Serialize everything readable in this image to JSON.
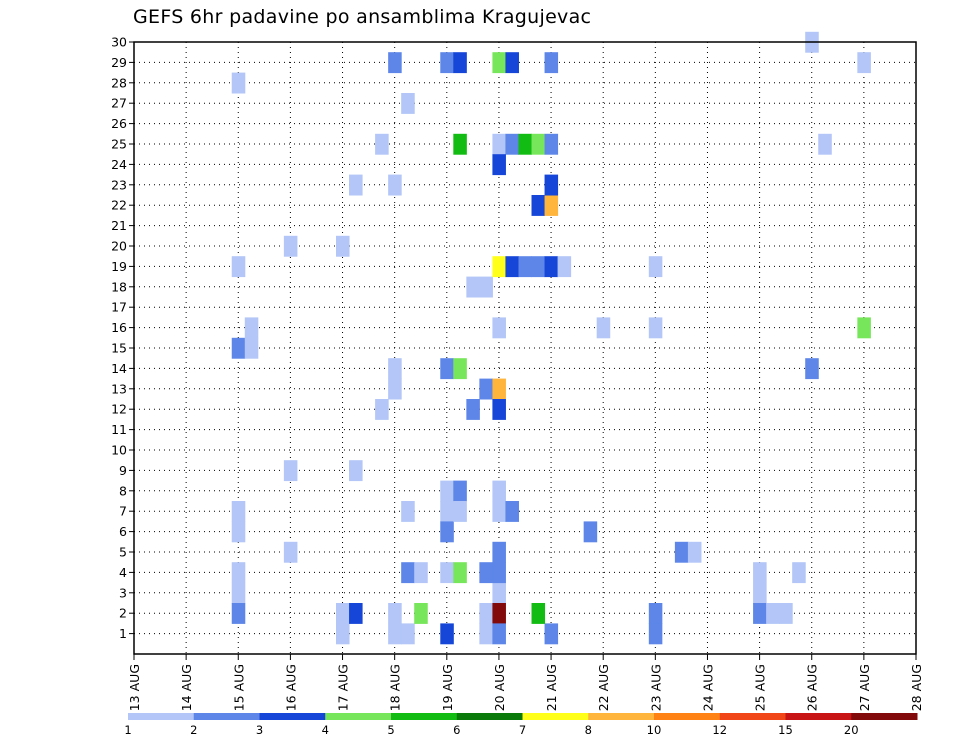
{
  "chart_data": {
    "type": "heatmap",
    "title": "GEFS 6hr padavine po ansamblima Kragujevac",
    "x_tick_labels": [
      "13 AUG",
      "14 AUG",
      "15 AUG",
      "16 AUG",
      "17 AUG",
      "18 AUG",
      "19 AUG",
      "20 AUG",
      "21 AUG",
      "22 AUG",
      "23 AUG",
      "24 AUG",
      "25 AUG",
      "26 AUG",
      "27 AUG",
      "28 AUG"
    ],
    "y_tick_labels": [
      "1",
      "2",
      "3",
      "4",
      "5",
      "6",
      "7",
      "8",
      "9",
      "10",
      "11",
      "12",
      "13",
      "14",
      "15",
      "16",
      "17",
      "18",
      "19",
      "20",
      "21",
      "22",
      "23",
      "24",
      "25",
      "26",
      "27",
      "28",
      "29",
      "30"
    ],
    "x_units": "days after 13 AUG 00z (6-hour steps)",
    "xlim": [
      0,
      15
    ],
    "ylim": [
      0,
      30
    ],
    "grid": true,
    "legend_placement": "bottom",
    "color_scale": {
      "boundary_labels": [
        "1",
        "2",
        "3",
        "4",
        "5",
        "6",
        "7",
        "8",
        "10",
        "12",
        "15",
        "20"
      ],
      "colors": [
        "#b3c6f7",
        "#5d86e8",
        "#1646d8",
        "#78e65a",
        "#12bc12",
        "#0a7a0a",
        "#ffff1a",
        "#ffb43c",
        "#ff8214",
        "#f04618",
        "#c81414",
        "#820a0a"
      ]
    },
    "cells": [
      {
        "t": 4.0,
        "m": 0,
        "c": 1
      },
      {
        "t": 4.0,
        "m": 1,
        "c": 1
      },
      {
        "t": 4.25,
        "m": 1,
        "c": 3
      },
      {
        "t": 5.0,
        "m": 0,
        "c": 1
      },
      {
        "t": 5.0,
        "m": 1,
        "c": 1
      },
      {
        "t": 5.25,
        "m": 0,
        "c": 1
      },
      {
        "t": 5.5,
        "m": 1,
        "c": 4
      },
      {
        "t": 5.25,
        "m": 3,
        "c": 2
      },
      {
        "t": 5.5,
        "m": 3,
        "c": 1
      },
      {
        "t": 6.0,
        "m": 3,
        "c": 1
      },
      {
        "t": 6.25,
        "m": 3,
        "c": 4
      },
      {
        "t": 6.75,
        "m": 3,
        "c": 2
      },
      {
        "t": 7.0,
        "m": 2,
        "c": 1
      },
      {
        "t": 6.75,
        "m": 1,
        "c": 1
      },
      {
        "t": 7.0,
        "m": 1,
        "c": 12
      },
      {
        "t": 6.75,
        "m": 0,
        "c": 1
      },
      {
        "t": 7.0,
        "m": 0,
        "c": 2
      },
      {
        "t": 8.0,
        "m": 0,
        "c": 2
      },
      {
        "t": 6.0,
        "m": 0,
        "c": 3
      },
      {
        "t": 7.75,
        "m": 1,
        "c": 5
      },
      {
        "t": 7.0,
        "m": 4,
        "c": 2
      },
      {
        "t": 7.0,
        "m": 3,
        "c": 2
      },
      {
        "t": 10.0,
        "m": 1,
        "c": 2
      },
      {
        "t": 12.0,
        "m": 2,
        "c": 1
      },
      {
        "t": 12.0,
        "m": 1,
        "c": 2
      },
      {
        "t": 12.25,
        "m": 1,
        "c": 1
      },
      {
        "t": 12.5,
        "m": 1,
        "c": 1
      },
      {
        "t": 12.0,
        "m": 3,
        "c": 1
      },
      {
        "t": 12.75,
        "m": 3,
        "c": 1
      },
      {
        "t": 10.5,
        "m": 4,
        "c": 2
      },
      {
        "t": 10.75,
        "m": 4,
        "c": 1
      },
      {
        "t": 2.0,
        "m": 2,
        "c": 1
      },
      {
        "t": 2.0,
        "m": 1,
        "c": 2
      },
      {
        "t": 2.0,
        "m": 3,
        "c": 1
      },
      {
        "t": 2.0,
        "m": 6,
        "c": 1
      },
      {
        "t": 2.0,
        "m": 5,
        "c": 1
      },
      {
        "t": 2.0,
        "m": 14,
        "c": 2
      },
      {
        "t": 2.25,
        "m": 14,
        "c": 1
      },
      {
        "t": 2.25,
        "m": 15,
        "c": 1
      },
      {
        "t": 2.0,
        "m": 18,
        "c": 1
      },
      {
        "t": 2.0,
        "m": 27,
        "c": 1
      },
      {
        "t": 3.0,
        "m": 4,
        "c": 1
      },
      {
        "t": 3.0,
        "m": 8,
        "c": 1
      },
      {
        "t": 3.0,
        "m": 19,
        "c": 1
      },
      {
        "t": 4.0,
        "m": 19,
        "c": 1
      },
      {
        "t": 4.25,
        "m": 8,
        "c": 1
      },
      {
        "t": 4.25,
        "m": 22,
        "c": 1
      },
      {
        "t": 4.75,
        "m": 24,
        "c": 1
      },
      {
        "t": 5.0,
        "m": 22,
        "c": 1
      },
      {
        "t": 5.0,
        "m": 28,
        "c": 2
      },
      {
        "t": 5.0,
        "m": 13,
        "c": 1
      },
      {
        "t": 5.0,
        "m": 12,
        "c": 1
      },
      {
        "t": 4.75,
        "m": 11,
        "c": 1
      },
      {
        "t": 5.25,
        "m": 6,
        "c": 1
      },
      {
        "t": 5.25,
        "m": 26,
        "c": 1
      },
      {
        "t": 6.0,
        "m": 6,
        "c": 1
      },
      {
        "t": 6.0,
        "m": 5,
        "c": 2
      },
      {
        "t": 6.0,
        "m": 7,
        "c": 1
      },
      {
        "t": 6.25,
        "m": 7,
        "c": 2
      },
      {
        "t": 6.25,
        "m": 6,
        "c": 1
      },
      {
        "t": 6.0,
        "m": 28,
        "c": 2
      },
      {
        "t": 6.25,
        "m": 28,
        "c": 3
      },
      {
        "t": 6.0,
        "m": 13,
        "c": 2
      },
      {
        "t": 6.25,
        "m": 13,
        "c": 4
      },
      {
        "t": 6.25,
        "m": 24,
        "c": 5
      },
      {
        "t": 6.5,
        "m": 11,
        "c": 2
      },
      {
        "t": 6.5,
        "m": 17,
        "c": 1
      },
      {
        "t": 6.75,
        "m": 17,
        "c": 1
      },
      {
        "t": 6.75,
        "m": 12,
        "c": 2
      },
      {
        "t": 7.0,
        "m": 12,
        "c": 8
      },
      {
        "t": 7.0,
        "m": 11,
        "c": 3
      },
      {
        "t": 7.0,
        "m": 6,
        "c": 1
      },
      {
        "t": 7.0,
        "m": 7,
        "c": 1
      },
      {
        "t": 7.25,
        "m": 6,
        "c": 2
      },
      {
        "t": 7.0,
        "m": 15,
        "c": 1
      },
      {
        "t": 7.0,
        "m": 18,
        "c": 7
      },
      {
        "t": 7.25,
        "m": 18,
        "c": 3
      },
      {
        "t": 7.5,
        "m": 18,
        "c": 2
      },
      {
        "t": 7.75,
        "m": 18,
        "c": 2
      },
      {
        "t": 8.0,
        "m": 18,
        "c": 3
      },
      {
        "t": 8.25,
        "m": 18,
        "c": 1
      },
      {
        "t": 7.0,
        "m": 24,
        "c": 1
      },
      {
        "t": 7.25,
        "m": 24,
        "c": 2
      },
      {
        "t": 7.5,
        "m": 24,
        "c": 5
      },
      {
        "t": 7.75,
        "m": 24,
        "c": 4
      },
      {
        "t": 8.0,
        "m": 24,
        "c": 2
      },
      {
        "t": 7.0,
        "m": 23,
        "c": 3
      },
      {
        "t": 7.0,
        "m": 28,
        "c": 4
      },
      {
        "t": 7.25,
        "m": 28,
        "c": 3
      },
      {
        "t": 8.0,
        "m": 28,
        "c": 2
      },
      {
        "t": 7.75,
        "m": 21,
        "c": 3
      },
      {
        "t": 8.0,
        "m": 21,
        "c": 8
      },
      {
        "t": 8.0,
        "m": 22,
        "c": 3
      },
      {
        "t": 8.75,
        "m": 5,
        "c": 2
      },
      {
        "t": 9.0,
        "m": 15,
        "c": 1
      },
      {
        "t": 10.0,
        "m": 15,
        "c": 1
      },
      {
        "t": 10.0,
        "m": 18,
        "c": 1
      },
      {
        "t": 10.0,
        "m": 0,
        "c": 2
      },
      {
        "t": 13.0,
        "m": 13,
        "c": 2
      },
      {
        "t": 13.25,
        "m": 24,
        "c": 1
      },
      {
        "t": 13.0,
        "m": 29,
        "c": 1
      },
      {
        "t": 14.0,
        "m": 15,
        "c": 4
      },
      {
        "t": 14.0,
        "m": 28,
        "c": 1
      }
    ]
  }
}
